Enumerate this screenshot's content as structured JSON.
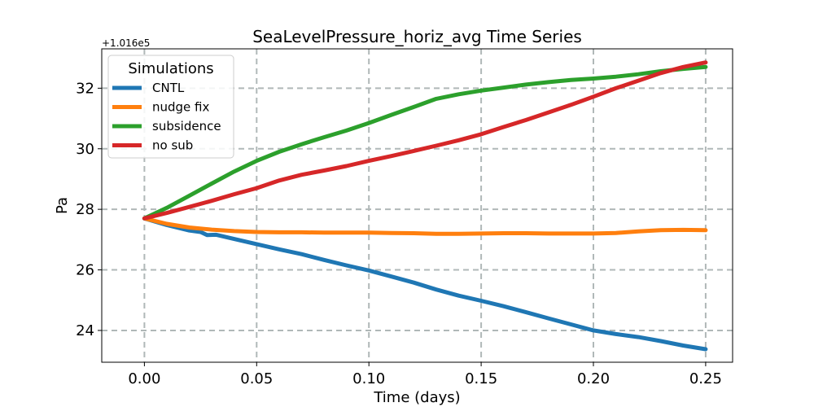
{
  "chart_data": {
    "type": "line",
    "title": "SeaLevelPressure_horiz_avg Time Series",
    "xlabel": "Time (days)",
    "ylabel": "Pa",
    "offset_label": "+1.016e5",
    "xlim": [
      -0.019,
      0.262
    ],
    "ylim": [
      22.95,
      33.3
    ],
    "xticks": [
      0.0,
      0.05,
      0.1,
      0.15,
      0.2,
      0.25
    ],
    "xtick_labels": [
      "0.00",
      "0.05",
      "0.10",
      "0.15",
      "0.20",
      "0.25"
    ],
    "yticks": [
      24,
      26,
      28,
      30,
      32
    ],
    "ytick_labels": [
      "24",
      "26",
      "28",
      "30",
      "32"
    ],
    "grid": true,
    "legend_title": "Simulations",
    "legend_location": "upper-left",
    "series": [
      {
        "name": "CNTL",
        "color": "#1f77b4",
        "x": [
          0.0,
          0.01,
          0.02,
          0.025,
          0.028,
          0.032,
          0.04,
          0.05,
          0.06,
          0.07,
          0.08,
          0.09,
          0.1,
          0.11,
          0.12,
          0.13,
          0.14,
          0.15,
          0.16,
          0.17,
          0.18,
          0.19,
          0.2,
          0.21,
          0.22,
          0.23,
          0.24,
          0.25
        ],
        "y": [
          27.7,
          27.48,
          27.3,
          27.25,
          27.15,
          27.16,
          27.02,
          26.85,
          26.68,
          26.52,
          26.33,
          26.15,
          25.98,
          25.78,
          25.58,
          25.35,
          25.15,
          24.98,
          24.8,
          24.6,
          24.4,
          24.2,
          24.0,
          23.88,
          23.78,
          23.65,
          23.5,
          23.38
        ]
      },
      {
        "name": "nudge fix",
        "color": "#ff7f0e",
        "x": [
          0.0,
          0.01,
          0.02,
          0.03,
          0.04,
          0.05,
          0.06,
          0.07,
          0.08,
          0.09,
          0.1,
          0.11,
          0.12,
          0.13,
          0.14,
          0.15,
          0.16,
          0.17,
          0.18,
          0.19,
          0.2,
          0.21,
          0.22,
          0.23,
          0.24,
          0.25
        ],
        "y": [
          27.7,
          27.52,
          27.4,
          27.33,
          27.28,
          27.25,
          27.24,
          27.24,
          27.23,
          27.23,
          27.23,
          27.22,
          27.21,
          27.19,
          27.19,
          27.2,
          27.21,
          27.21,
          27.2,
          27.2,
          27.2,
          27.22,
          27.27,
          27.31,
          27.32,
          27.31
        ]
      },
      {
        "name": "subsidence",
        "color": "#2ca02c",
        "x": [
          0.0,
          0.01,
          0.02,
          0.03,
          0.04,
          0.05,
          0.06,
          0.07,
          0.08,
          0.09,
          0.1,
          0.11,
          0.12,
          0.13,
          0.14,
          0.15,
          0.16,
          0.17,
          0.18,
          0.19,
          0.2,
          0.21,
          0.22,
          0.23,
          0.24,
          0.25
        ],
        "y": [
          27.7,
          28.05,
          28.45,
          28.85,
          29.25,
          29.6,
          29.9,
          30.15,
          30.38,
          30.6,
          30.85,
          31.12,
          31.38,
          31.65,
          31.8,
          31.92,
          32.02,
          32.12,
          32.2,
          32.27,
          32.32,
          32.38,
          32.46,
          32.56,
          32.64,
          32.7
        ]
      },
      {
        "name": "no sub",
        "color": "#d62728",
        "x": [
          0.0,
          0.01,
          0.02,
          0.03,
          0.04,
          0.05,
          0.06,
          0.07,
          0.08,
          0.09,
          0.1,
          0.11,
          0.12,
          0.13,
          0.14,
          0.15,
          0.16,
          0.17,
          0.18,
          0.19,
          0.2,
          0.21,
          0.22,
          0.23,
          0.24,
          0.25
        ],
        "y": [
          27.7,
          27.88,
          28.08,
          28.28,
          28.5,
          28.7,
          28.95,
          29.14,
          29.28,
          29.43,
          29.6,
          29.76,
          29.93,
          30.1,
          30.28,
          30.48,
          30.72,
          30.95,
          31.2,
          31.45,
          31.72,
          32.0,
          32.25,
          32.5,
          32.7,
          32.85
        ]
      }
    ]
  }
}
